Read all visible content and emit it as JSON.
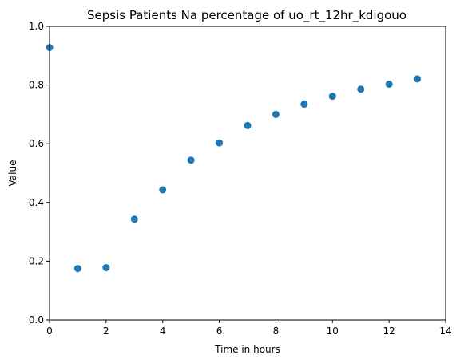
{
  "chart_data": {
    "type": "scatter",
    "title": "Sepsis Patients Na percentage of uo_rt_12hr_kdigouo",
    "xlabel": "Time in hours",
    "ylabel": "Value",
    "xlim": [
      0,
      14
    ],
    "ylim": [
      0,
      1.0
    ],
    "xticks": [
      0,
      2,
      4,
      6,
      8,
      10,
      12,
      14
    ],
    "yticks": [
      0.0,
      0.2,
      0.4,
      0.6,
      0.8,
      1.0
    ],
    "xtick_labels": [
      "0",
      "2",
      "4",
      "6",
      "8",
      "10",
      "12",
      "14"
    ],
    "ytick_labels": [
      "0.0",
      "0.2",
      "0.4",
      "0.6",
      "0.8",
      "1.0"
    ],
    "grid": false,
    "series": [
      {
        "color": "#1f77b4",
        "x": [
          0,
          1,
          2,
          3,
          4,
          5,
          6,
          7,
          8,
          9,
          10,
          11,
          12,
          13
        ],
        "y": [
          0.928,
          0.175,
          0.178,
          0.343,
          0.443,
          0.544,
          0.603,
          0.662,
          0.7,
          0.735,
          0.762,
          0.786,
          0.803,
          0.821
        ]
      }
    ]
  }
}
